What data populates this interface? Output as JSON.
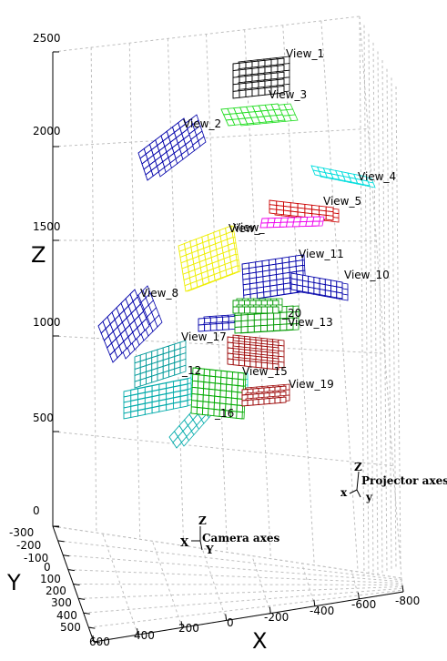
{
  "chart_data": {
    "type": "scatter3d",
    "axes": {
      "x": {
        "label": "X",
        "ticks": [
          "600",
          "400",
          "200",
          "0",
          "-200",
          "-400",
          "-600",
          "-800"
        ]
      },
      "y": {
        "label": "Y",
        "ticks": [
          "-300",
          "-200",
          "-100",
          "0",
          "100",
          "200",
          "300",
          "400",
          "500"
        ]
      },
      "z": {
        "label": "Z",
        "ticks": [
          "0",
          "500",
          "1000",
          "1500",
          "2000",
          "2500"
        ]
      }
    },
    "grid": true,
    "camera_axes": {
      "title": "Camera axes",
      "x": "X",
      "y": "Y",
      "z": "Z"
    },
    "projector_axes": {
      "title": "Projector axes",
      "x": "x",
      "y": "y",
      "z": "Z"
    },
    "views": [
      {
        "label": "View_1",
        "color": "#000000"
      },
      {
        "label": "View_2",
        "color": "#0000aa"
      },
      {
        "label": "View_3",
        "color": "#22dd22"
      },
      {
        "label": "View_4",
        "color": "#00dddd"
      },
      {
        "label": "View_5",
        "color": "#cc0000"
      },
      {
        "label": "View_",
        "color": "#ee00ee"
      },
      {
        "label": "View_",
        "color": "#eeee00"
      },
      {
        "label": "View_8",
        "color": "#0000aa"
      },
      {
        "label": "View_10",
        "color": "#0000aa"
      },
      {
        "label": "View_11",
        "color": "#0000aa"
      },
      {
        "label": "_12",
        "color": "#00aaaa"
      },
      {
        "label": "View_13",
        "color": "#009900"
      },
      {
        "label": "View_15",
        "color": "#00cccc"
      },
      {
        "label": "_16",
        "color": "#00aa00"
      },
      {
        "label": "View_17",
        "color": "#009999"
      },
      {
        "label": "View_19",
        "color": "#990000"
      },
      {
        "label": "_20",
        "color": "#009900"
      }
    ]
  }
}
